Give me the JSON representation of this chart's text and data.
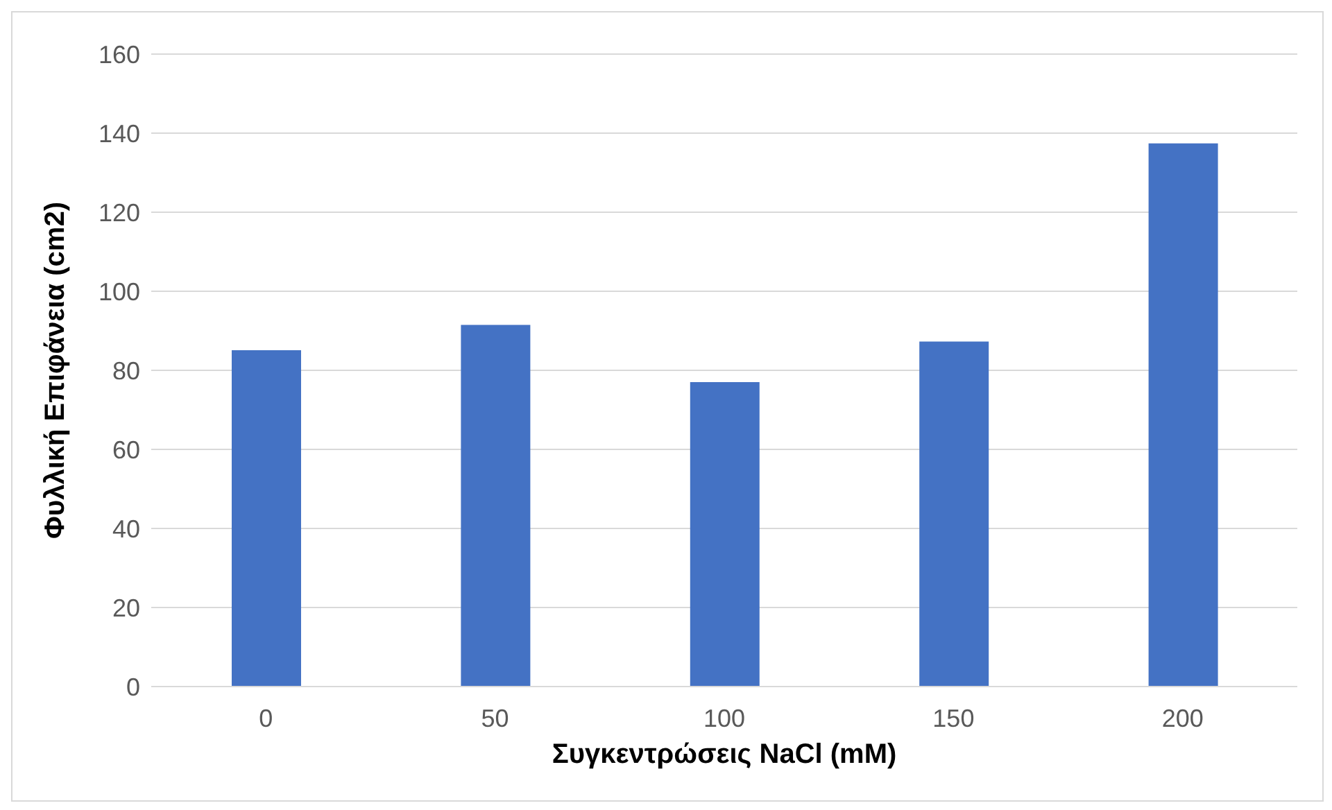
{
  "chart_data": {
    "type": "bar",
    "xlabel": "Συγκεντρώσεις NaCl (mM)",
    "ylabel": "Φυλλική Επιφάνεια (cm2)",
    "categories": [
      "0",
      "50",
      "100",
      "150",
      "200"
    ],
    "values": [
      85.1,
      91.5,
      77,
      87.3,
      137.4
    ],
    "color": "#4472c4",
    "ylim": [
      0,
      160
    ],
    "yticks": [
      0,
      20,
      40,
      60,
      80,
      100,
      120,
      140,
      160
    ],
    "grid": "y"
  }
}
